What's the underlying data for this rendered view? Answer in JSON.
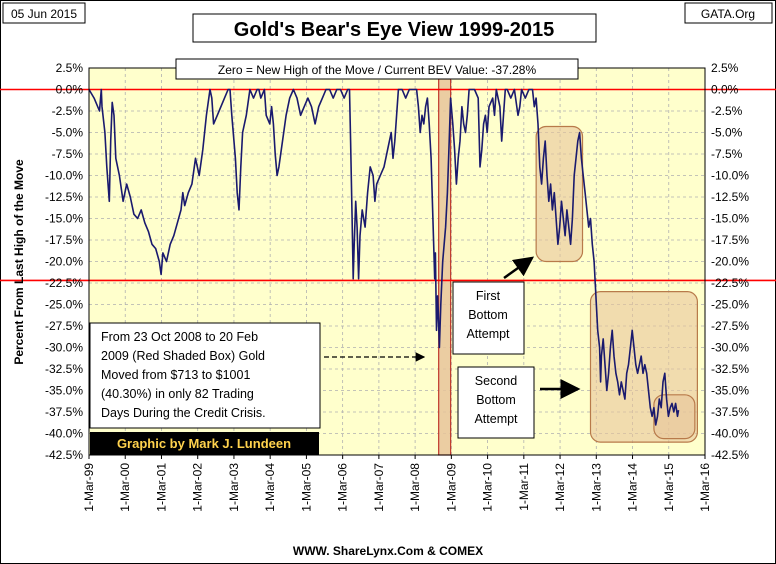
{
  "header": {
    "date": "05 Jun 2015",
    "source_tag": "GATA.Org",
    "title": "Gold's Bear's Eye View 1999-2015"
  },
  "footer": {
    "credit": "WWW. ShareLynx.Com & COMEX",
    "author": "Graphic by Mark J. Lundeen"
  },
  "annotations": {
    "bev_box": "Zero = New High of the Move / Current BEV Value:  -37.28%",
    "crisis_note": [
      "From 23 Oct 2008 to 20 Feb",
      "2009 (Red Shaded Box)  Gold",
      "Moved from $713 to $1001",
      "(40.30%) in only 82 Trading",
      "Days During the Credit Crisis."
    ],
    "first_bottom": [
      "First",
      "Bottom",
      "Attempt"
    ],
    "second_bottom": [
      "Second",
      "Bottom",
      "Attempt"
    ]
  },
  "colors": {
    "plot_bg": "#ffffcc",
    "series": "#1a1a6e",
    "red_line": "#ff0000",
    "shade_fill": "#e8c49a",
    "shade_stroke": "#b87a4a",
    "grid": "#b0b0b0"
  },
  "chart_data": {
    "type": "line",
    "title": "Gold's Bear's Eye View 1999-2015",
    "ylabel": "Percent  From Last High of the Move",
    "xlabel": "",
    "ylim": [
      -42.5,
      2.5
    ],
    "x_range": [
      1999.16,
      2016.16
    ],
    "y_ticks": [
      "2.5%",
      "0.0%",
      "-2.5%",
      "-5.0%",
      "-7.5%",
      "-10.0%",
      "-12.5%",
      "-15.0%",
      "-17.5%",
      "-20.0%",
      "-22.5%",
      "-25.0%",
      "-27.5%",
      "-30.0%",
      "-32.5%",
      "-35.0%",
      "-37.5%",
      "-40.0%",
      "-42.5%"
    ],
    "x_ticks": [
      "1-Mar-99",
      "1-Mar-00",
      "1-Mar-01",
      "1-Mar-02",
      "1-Mar-03",
      "1-Mar-04",
      "1-Mar-05",
      "1-Mar-06",
      "1-Mar-07",
      "1-Mar-08",
      "1-Mar-09",
      "1-Mar-10",
      "1-Mar-11",
      "1-Mar-12",
      "1-Mar-13",
      "1-Mar-14",
      "1-Mar-15",
      "1-Mar-16"
    ],
    "reference_lines": [
      0,
      -22.2
    ],
    "current_value": -37.28,
    "shaded_region": {
      "x0": 2008.81,
      "x1": 2009.14,
      "y0": 2.5,
      "y1": -42.5
    },
    "boxes": [
      {
        "x0": 2011.5,
        "x1": 2012.78,
        "y0": -4.3,
        "y1": -20.0
      },
      {
        "x0": 2013.0,
        "x1": 2015.95,
        "y0": -23.5,
        "y1": -41.0
      },
      {
        "x0": 2014.75,
        "x1": 2015.88,
        "y0": -35.5,
        "y1": -40.6
      }
    ],
    "series": [
      {
        "name": "Gold BEV",
        "points": [
          [
            1999.16,
            0
          ],
          [
            1999.3,
            -1
          ],
          [
            1999.45,
            -2.5
          ],
          [
            1999.5,
            0
          ],
          [
            1999.52,
            -2
          ],
          [
            1999.6,
            -5
          ],
          [
            1999.65,
            -9
          ],
          [
            1999.72,
            -13
          ],
          [
            1999.76,
            -6
          ],
          [
            1999.8,
            -1.5
          ],
          [
            1999.85,
            -3
          ],
          [
            1999.9,
            -8
          ],
          [
            2000.0,
            -10
          ],
          [
            2000.1,
            -13
          ],
          [
            2000.2,
            -11
          ],
          [
            2000.3,
            -12.5
          ],
          [
            2000.4,
            -14.5
          ],
          [
            2000.5,
            -15
          ],
          [
            2000.6,
            -14
          ],
          [
            2000.7,
            -15.5
          ],
          [
            2000.8,
            -16.5
          ],
          [
            2000.9,
            -18
          ],
          [
            2001.0,
            -18.5
          ],
          [
            2001.1,
            -20
          ],
          [
            2001.15,
            -21.5
          ],
          [
            2001.2,
            -19
          ],
          [
            2001.3,
            -20
          ],
          [
            2001.4,
            -18
          ],
          [
            2001.5,
            -17
          ],
          [
            2001.6,
            -15.5
          ],
          [
            2001.7,
            -14
          ],
          [
            2001.75,
            -12
          ],
          [
            2001.8,
            -13.5
          ],
          [
            2001.9,
            -12
          ],
          [
            2002.0,
            -11
          ],
          [
            2002.1,
            -8
          ],
          [
            2002.2,
            -10
          ],
          [
            2002.3,
            -7
          ],
          [
            2002.4,
            -3
          ],
          [
            2002.5,
            0
          ],
          [
            2002.55,
            -1
          ],
          [
            2002.6,
            -4
          ],
          [
            2002.7,
            -3
          ],
          [
            2002.8,
            -2
          ],
          [
            2002.9,
            -1
          ],
          [
            2003.0,
            0
          ],
          [
            2003.05,
            0
          ],
          [
            2003.1,
            -3
          ],
          [
            2003.2,
            -8
          ],
          [
            2003.25,
            -12
          ],
          [
            2003.3,
            -14
          ],
          [
            2003.35,
            -9
          ],
          [
            2003.4,
            -5
          ],
          [
            2003.5,
            -3
          ],
          [
            2003.6,
            0
          ],
          [
            2003.7,
            -1
          ],
          [
            2003.8,
            0
          ],
          [
            2003.85,
            0
          ],
          [
            2003.9,
            -1
          ],
          [
            2004.0,
            0
          ],
          [
            2004.05,
            -3
          ],
          [
            2004.15,
            -4
          ],
          [
            2004.2,
            -2
          ],
          [
            2004.25,
            -4
          ],
          [
            2004.3,
            -7.5
          ],
          [
            2004.35,
            -10
          ],
          [
            2004.4,
            -9
          ],
          [
            2004.5,
            -6
          ],
          [
            2004.6,
            -3
          ],
          [
            2004.7,
            -1
          ],
          [
            2004.8,
            0
          ],
          [
            2004.9,
            -1
          ],
          [
            2005.0,
            -3
          ],
          [
            2005.1,
            -2
          ],
          [
            2005.2,
            -1
          ],
          [
            2005.3,
            -2
          ],
          [
            2005.4,
            -4
          ],
          [
            2005.5,
            -2
          ],
          [
            2005.6,
            -1
          ],
          [
            2005.7,
            0
          ],
          [
            2005.8,
            0
          ],
          [
            2005.9,
            -1
          ],
          [
            2006.0,
            0
          ],
          [
            2006.1,
            0
          ],
          [
            2006.2,
            -1
          ],
          [
            2006.3,
            0
          ],
          [
            2006.35,
            0
          ],
          [
            2006.38,
            -6
          ],
          [
            2006.42,
            -15
          ],
          [
            2006.45,
            -22
          ],
          [
            2006.48,
            -18
          ],
          [
            2006.52,
            -13
          ],
          [
            2006.56,
            -16
          ],
          [
            2006.6,
            -22
          ],
          [
            2006.64,
            -17
          ],
          [
            2006.7,
            -14
          ],
          [
            2006.78,
            -16
          ],
          [
            2006.85,
            -12
          ],
          [
            2006.92,
            -9
          ],
          [
            2007.0,
            -10
          ],
          [
            2007.05,
            -13
          ],
          [
            2007.1,
            -11
          ],
          [
            2007.2,
            -10
          ],
          [
            2007.3,
            -9
          ],
          [
            2007.4,
            -7
          ],
          [
            2007.5,
            -5
          ],
          [
            2007.55,
            -8
          ],
          [
            2007.6,
            -6
          ],
          [
            2007.65,
            -3
          ],
          [
            2007.7,
            0
          ],
          [
            2007.8,
            0
          ],
          [
            2007.9,
            -1
          ],
          [
            2008.0,
            0
          ],
          [
            2008.1,
            0
          ],
          [
            2008.2,
            0
          ],
          [
            2008.25,
            -2
          ],
          [
            2008.3,
            -5
          ],
          [
            2008.35,
            -3
          ],
          [
            2008.4,
            -4
          ],
          [
            2008.45,
            -2
          ],
          [
            2008.5,
            -1
          ],
          [
            2008.55,
            -4
          ],
          [
            2008.6,
            -8
          ],
          [
            2008.65,
            -15
          ],
          [
            2008.7,
            -22
          ],
          [
            2008.72,
            -19
          ],
          [
            2008.75,
            -28
          ],
          [
            2008.78,
            -24
          ],
          [
            2008.8,
            -26
          ],
          [
            2008.83,
            -30
          ],
          [
            2008.87,
            -25
          ],
          [
            2008.92,
            -20
          ],
          [
            2009.0,
            -16
          ],
          [
            2009.05,
            -12
          ],
          [
            2009.1,
            -6
          ],
          [
            2009.14,
            -1
          ],
          [
            2009.2,
            -4
          ],
          [
            2009.25,
            -7
          ],
          [
            2009.3,
            -11
          ],
          [
            2009.35,
            -8
          ],
          [
            2009.4,
            -6
          ],
          [
            2009.45,
            -2
          ],
          [
            2009.5,
            -4
          ],
          [
            2009.55,
            -5
          ],
          [
            2009.6,
            -3
          ],
          [
            2009.65,
            0
          ],
          [
            2009.7,
            0
          ],
          [
            2009.8,
            0
          ],
          [
            2009.9,
            -1
          ],
          [
            2009.95,
            -9
          ],
          [
            2010.0,
            -7
          ],
          [
            2010.05,
            -4
          ],
          [
            2010.1,
            -3
          ],
          [
            2010.15,
            -5
          ],
          [
            2010.2,
            -2
          ],
          [
            2010.3,
            -1
          ],
          [
            2010.35,
            -3
          ],
          [
            2010.4,
            0
          ],
          [
            2010.5,
            -2
          ],
          [
            2010.55,
            -6
          ],
          [
            2010.6,
            -3
          ],
          [
            2010.65,
            0
          ],
          [
            2010.7,
            0
          ],
          [
            2010.8,
            -1
          ],
          [
            2010.9,
            0
          ],
          [
            2011.0,
            -3
          ],
          [
            2011.05,
            -2
          ],
          [
            2011.1,
            0
          ],
          [
            2011.2,
            -1
          ],
          [
            2011.3,
            0
          ],
          [
            2011.4,
            0
          ],
          [
            2011.45,
            -2
          ],
          [
            2011.5,
            -1
          ],
          [
            2011.55,
            -4
          ],
          [
            2011.6,
            -9
          ],
          [
            2011.65,
            -11
          ],
          [
            2011.7,
            -8
          ],
          [
            2011.75,
            -6
          ],
          [
            2011.8,
            -10
          ],
          [
            2011.85,
            -13
          ],
          [
            2011.9,
            -11
          ],
          [
            2011.95,
            -14
          ],
          [
            2012.0,
            -12
          ],
          [
            2012.05,
            -15
          ],
          [
            2012.1,
            -18
          ],
          [
            2012.15,
            -16
          ],
          [
            2012.2,
            -13
          ],
          [
            2012.25,
            -15
          ],
          [
            2012.3,
            -17
          ],
          [
            2012.35,
            -14
          ],
          [
            2012.4,
            -16
          ],
          [
            2012.45,
            -18
          ],
          [
            2012.5,
            -15
          ],
          [
            2012.55,
            -10
          ],
          [
            2012.6,
            -8
          ],
          [
            2012.65,
            -6
          ],
          [
            2012.7,
            -5
          ],
          [
            2012.75,
            -8
          ],
          [
            2012.8,
            -10
          ],
          [
            2012.85,
            -12
          ],
          [
            2012.9,
            -14
          ],
          [
            2012.95,
            -16
          ],
          [
            2013.0,
            -15
          ],
          [
            2013.05,
            -18
          ],
          [
            2013.1,
            -20
          ],
          [
            2013.15,
            -24
          ],
          [
            2013.2,
            -28
          ],
          [
            2013.25,
            -30
          ],
          [
            2013.28,
            -34
          ],
          [
            2013.3,
            -31
          ],
          [
            2013.35,
            -29
          ],
          [
            2013.4,
            -32
          ],
          [
            2013.45,
            -35
          ],
          [
            2013.5,
            -33
          ],
          [
            2013.55,
            -30
          ],
          [
            2013.6,
            -28
          ],
          [
            2013.65,
            -31
          ],
          [
            2013.7,
            -33
          ],
          [
            2013.75,
            -34
          ],
          [
            2013.8,
            -35.5
          ],
          [
            2013.85,
            -34
          ],
          [
            2013.9,
            -35
          ],
          [
            2013.95,
            -36
          ],
          [
            2014.0,
            -33
          ],
          [
            2014.05,
            -32
          ],
          [
            2014.1,
            -30
          ],
          [
            2014.15,
            -28
          ],
          [
            2014.2,
            -30
          ],
          [
            2014.25,
            -32
          ],
          [
            2014.3,
            -33
          ],
          [
            2014.35,
            -32
          ],
          [
            2014.4,
            -31
          ],
          [
            2014.45,
            -33
          ],
          [
            2014.5,
            -32
          ],
          [
            2014.55,
            -33
          ],
          [
            2014.6,
            -35
          ],
          [
            2014.65,
            -37
          ],
          [
            2014.7,
            -38
          ],
          [
            2014.75,
            -37
          ],
          [
            2014.8,
            -39
          ],
          [
            2014.85,
            -38
          ],
          [
            2014.9,
            -36
          ],
          [
            2014.95,
            -37
          ],
          [
            2015.0,
            -34
          ],
          [
            2015.05,
            -33
          ],
          [
            2015.1,
            -36
          ],
          [
            2015.15,
            -38
          ],
          [
            2015.2,
            -37
          ],
          [
            2015.25,
            -36.5
          ],
          [
            2015.3,
            -37.5
          ],
          [
            2015.35,
            -36.5
          ],
          [
            2015.4,
            -38
          ],
          [
            2015.43,
            -37.28
          ]
        ]
      }
    ]
  }
}
